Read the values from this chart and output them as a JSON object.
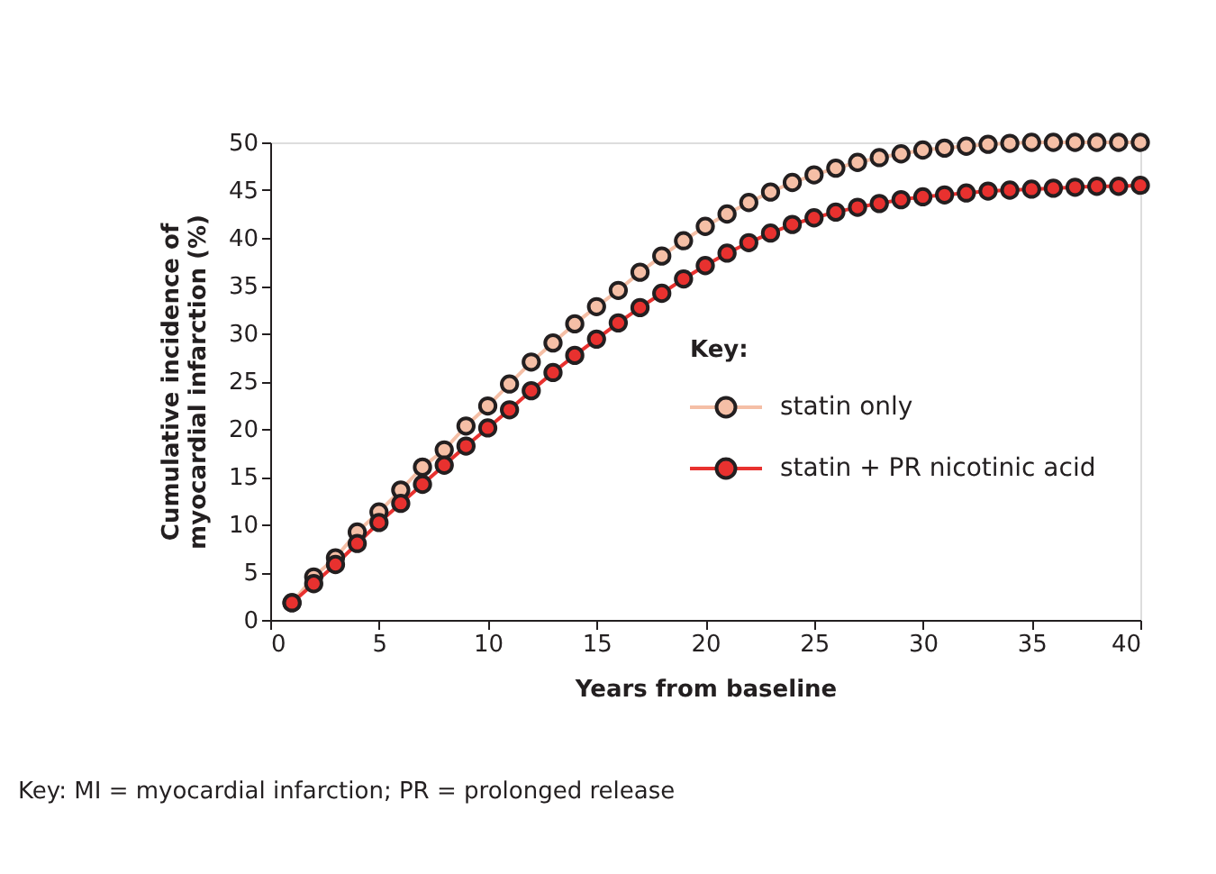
{
  "chart_data": {
    "type": "line",
    "xlabel": "Years from baseline",
    "ylabel": "Cumulative incidence of myocardial infarction (%)",
    "legend_title": "Key:",
    "legend": "right",
    "marker": "circle",
    "line_style": "solid",
    "grid": false,
    "x": [
      1,
      2,
      3,
      4,
      5,
      6,
      7,
      8,
      9,
      10,
      11,
      12,
      13,
      14,
      15,
      16,
      17,
      18,
      19,
      20,
      21,
      22,
      23,
      24,
      25,
      26,
      27,
      28,
      29,
      30,
      31,
      32,
      33,
      34,
      35,
      36,
      37,
      38,
      39,
      40
    ],
    "xlim": [
      0,
      40
    ],
    "xticks": [
      0,
      5,
      10,
      15,
      20,
      25,
      30,
      35,
      40
    ],
    "ylim": [
      0,
      50
    ],
    "yticks": [
      0,
      5,
      10,
      15,
      20,
      25,
      30,
      35,
      40,
      45,
      50
    ],
    "series": [
      {
        "name": "statin only",
        "color": "#f5bfa6",
        "values": [
          1.8,
          4.5,
          6.5,
          9.2,
          11.3,
          13.6,
          16,
          17.8,
          20.3,
          22.4,
          24.7,
          27,
          29,
          31,
          32.8,
          34.5,
          36.4,
          38.1,
          39.7,
          41.2,
          42.5,
          43.7,
          44.8,
          45.8,
          46.6,
          47.3,
          47.9,
          48.4,
          48.8,
          49.2,
          49.4,
          49.6,
          49.8,
          49.9,
          50,
          50,
          50,
          50,
          50,
          50
        ]
      },
      {
        "name": "statin + PR nicotinic acid",
        "color": "#e8312f",
        "values": [
          1.8,
          3.8,
          5.8,
          8,
          10.2,
          12.2,
          14.2,
          16.2,
          18.2,
          20.1,
          22,
          24,
          25.9,
          27.7,
          29.4,
          31.1,
          32.7,
          34.2,
          35.7,
          37.1,
          38.4,
          39.5,
          40.5,
          41.4,
          42.1,
          42.7,
          43.2,
          43.6,
          44,
          44.3,
          44.5,
          44.7,
          44.9,
          45,
          45.1,
          45.2,
          45.3,
          45.4,
          45.4,
          45.5
        ]
      }
    ],
    "annotations": [
      "Key: MI = myocardial infarction; PR = prolonged release"
    ]
  }
}
